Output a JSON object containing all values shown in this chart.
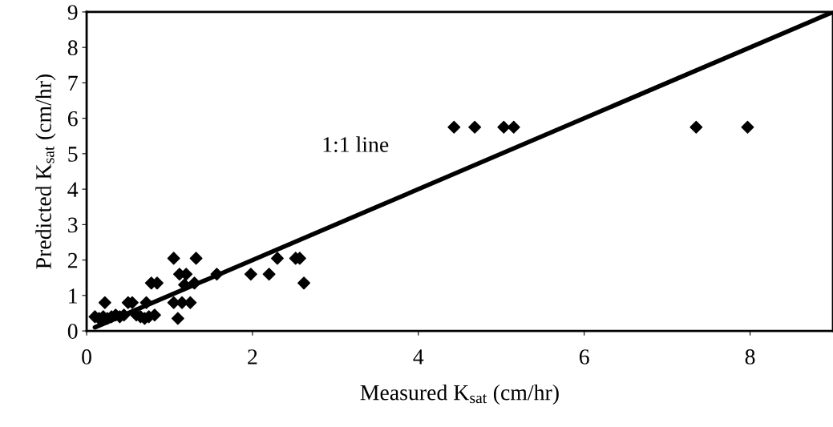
{
  "chart_data": {
    "type": "scatter",
    "xlabel": "Measured K$_{sat}$ (cm/hr)",
    "ylabel": "Predicted K$_{sat}$ (cm/hr)",
    "xlim": [
      0,
      9
    ],
    "ylim": [
      0,
      9
    ],
    "xticks": [
      0,
      2,
      4,
      6,
      8
    ],
    "yticks": [
      0,
      1,
      2,
      3,
      4,
      5,
      6,
      7,
      8,
      9
    ],
    "grid": false,
    "annotations": [
      "1:1 line"
    ],
    "series": [
      {
        "marker": "diamond",
        "color": "#000000",
        "x": [
          0.1,
          0.15,
          0.2,
          0.22,
          0.25,
          0.3,
          0.35,
          0.4,
          0.45,
          0.5,
          0.55,
          0.6,
          0.65,
          0.7,
          0.72,
          0.75,
          0.78,
          0.85,
          0.82,
          1.05,
          1.05,
          1.1,
          1.12,
          1.15,
          1.18,
          1.2,
          1.25,
          1.32,
          1.3,
          1.57,
          1.98,
          2.2,
          2.3,
          2.52,
          2.57,
          2.62,
          4.43,
          4.68,
          5.03,
          5.15,
          7.35,
          7.97
        ],
        "values": [
          0.4,
          0.35,
          0.4,
          0.8,
          0.35,
          0.4,
          0.45,
          0.4,
          0.45,
          0.8,
          0.8,
          0.45,
          0.4,
          0.35,
          0.8,
          0.4,
          1.35,
          1.35,
          0.45,
          2.05,
          0.8,
          0.35,
          1.6,
          0.8,
          1.3,
          1.6,
          0.8,
          2.05,
          1.35,
          1.6,
          1.6,
          1.6,
          2.05,
          2.05,
          2.05,
          1.35,
          5.75,
          5.75,
          5.75,
          5.75,
          5.75,
          5.75
        ]
      },
      {
        "type": "line",
        "color": "#000000",
        "line_style": "solid",
        "x": [
          0.1,
          9
        ],
        "values": [
          0.1,
          9
        ]
      }
    ]
  }
}
